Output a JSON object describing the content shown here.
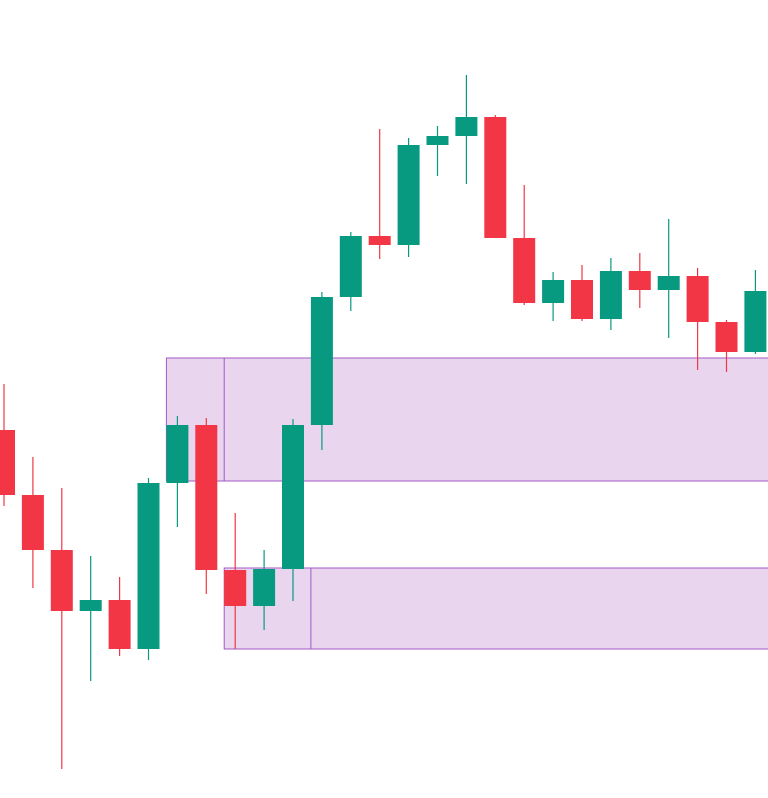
{
  "chart_data": {
    "type": "candlestick",
    "title": "",
    "xlabel": "",
    "ylabel": "",
    "ylim": [
      0,
      798
    ],
    "colors": {
      "up": "#089981",
      "down": "#f23645",
      "zone_fill": "#ead5ef",
      "zone_border": "#a259c7"
    },
    "candles": [
      {
        "i": 0,
        "open": 368,
        "high": 414,
        "low": 292,
        "close": 303
      },
      {
        "i": 1,
        "open": 303,
        "high": 341,
        "low": 210,
        "close": 248
      },
      {
        "i": 2,
        "open": 248,
        "high": 310,
        "low": 29,
        "close": 187
      },
      {
        "i": 3,
        "open": 187,
        "high": 242,
        "low": 117,
        "close": 198
      },
      {
        "i": 4,
        "open": 198,
        "high": 221,
        "low": 142,
        "close": 149
      },
      {
        "i": 5,
        "open": 149,
        "high": 320,
        "low": 138,
        "close": 315
      },
      {
        "i": 6,
        "open": 315,
        "high": 382,
        "low": 271,
        "close": 373
      },
      {
        "i": 7,
        "open": 373,
        "high": 380,
        "low": 204,
        "close": 228
      },
      {
        "i": 8,
        "open": 228,
        "high": 285,
        "low": 149,
        "close": 192
      },
      {
        "i": 9,
        "open": 192,
        "high": 248,
        "low": 168,
        "close": 229
      },
      {
        "i": 10,
        "open": 229,
        "high": 379,
        "low": 197,
        "close": 373
      },
      {
        "i": 11,
        "open": 373,
        "high": 506,
        "low": 348,
        "close": 501
      },
      {
        "i": 12,
        "open": 501,
        "high": 566,
        "low": 487,
        "close": 562
      },
      {
        "i": 13,
        "open": 562,
        "high": 669,
        "low": 539,
        "close": 553
      },
      {
        "i": 14,
        "open": 553,
        "high": 660,
        "low": 541,
        "close": 653
      },
      {
        "i": 15,
        "open": 653,
        "high": 672,
        "low": 622,
        "close": 662
      },
      {
        "i": 16,
        "open": 662,
        "high": 723,
        "low": 614,
        "close": 681
      },
      {
        "i": 17,
        "open": 681,
        "high": 683,
        "low": 560,
        "close": 560
      },
      {
        "i": 18,
        "open": 560,
        "high": 613,
        "low": 493,
        "close": 495
      },
      {
        "i": 19,
        "open": 495,
        "high": 526,
        "low": 477,
        "close": 518
      },
      {
        "i": 20,
        "open": 518,
        "high": 533,
        "low": 477,
        "close": 479
      },
      {
        "i": 21,
        "open": 479,
        "high": 540,
        "low": 468,
        "close": 527
      },
      {
        "i": 22,
        "open": 527,
        "high": 545,
        "low": 490,
        "close": 508
      },
      {
        "i": 23,
        "open": 508,
        "high": 579,
        "low": 460,
        "close": 522
      },
      {
        "i": 24,
        "open": 522,
        "high": 530,
        "low": 428,
        "close": 476
      },
      {
        "i": 25,
        "open": 476,
        "high": 478,
        "low": 426,
        "close": 446
      },
      {
        "i": 26,
        "open": 446,
        "high": 528,
        "low": 444,
        "close": 507
      }
    ],
    "zones": [
      {
        "name": "upper-zone",
        "from_index": 6,
        "mark_index": 8,
        "top": 440,
        "bottom": 317
      },
      {
        "name": "lower-zone",
        "from_index": 8,
        "mark_index": 11,
        "top": 230,
        "bottom": 149
      }
    ]
  }
}
